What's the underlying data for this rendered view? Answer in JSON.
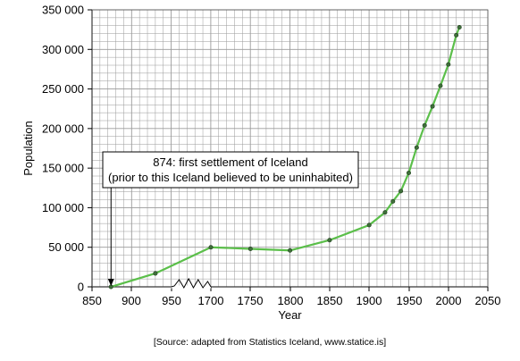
{
  "chart_data": {
    "type": "line",
    "title": "",
    "xlabel": "Year",
    "ylabel": "Population",
    "x_ticks": [
      "850",
      "900",
      "950",
      "1700",
      "1750",
      "1800",
      "1850",
      "1900",
      "1950",
      "2000",
      "2050"
    ],
    "y_ticks": [
      "0",
      "50 000",
      "100 000",
      "150 000",
      "200 000",
      "250 000",
      "300 000",
      "350 000"
    ],
    "ylim": [
      0,
      350000
    ],
    "axis_break": {
      "from": 950,
      "to": 1700
    },
    "grid": true,
    "series_color": "#5bbf4a",
    "series": [
      {
        "x": [
          874,
          930,
          1700,
          1750,
          1800,
          1850,
          1900,
          1920,
          1930,
          1940,
          1950,
          1960,
          1970,
          1980,
          1990,
          2000,
          2010,
          2014
        ],
        "y": [
          0,
          17000,
          50000,
          48000,
          46000,
          59000,
          78000,
          94000,
          108000,
          121000,
          144000,
          176000,
          204000,
          228000,
          254000,
          281000,
          318000,
          328000
        ]
      }
    ],
    "annotation": {
      "line1": "874: first settlement of Iceland",
      "line2": "(prior to this Iceland believed to be uninhabited)",
      "x": 874
    },
    "source": "[Source: adapted from Statistics Iceland, www.statice.is]"
  }
}
